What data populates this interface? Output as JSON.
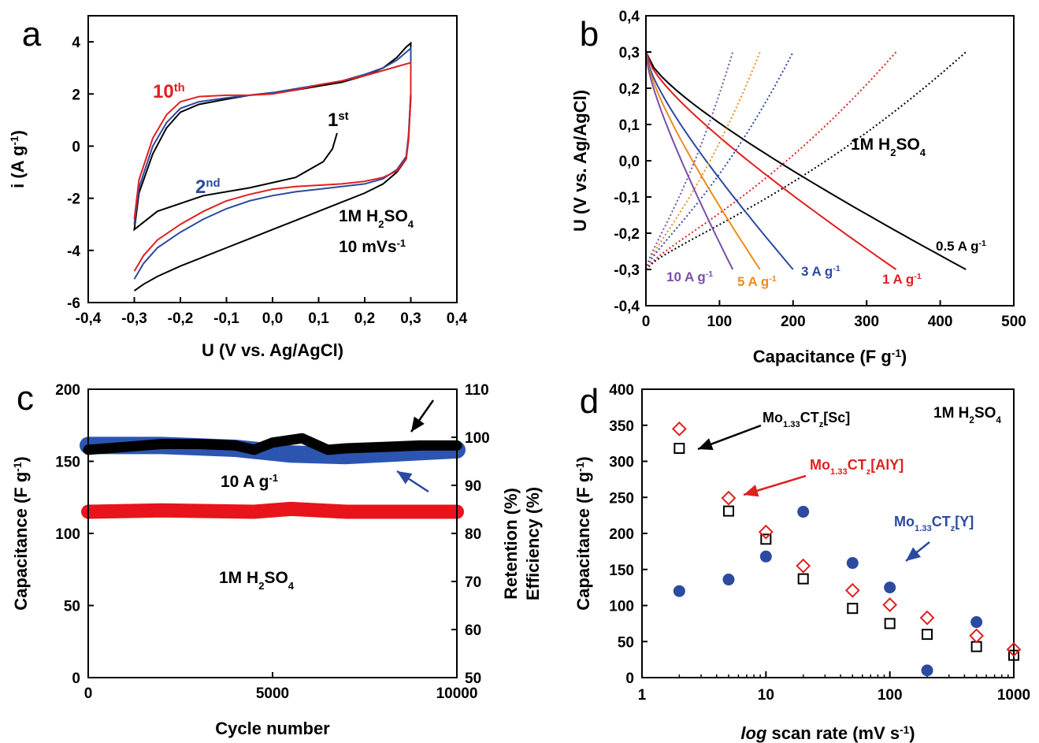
{
  "chart_data": [
    {
      "panel": "a",
      "type": "line",
      "xlabel": "U (V vs. Ag/AgCl)",
      "ylabel": "i (A g-1)",
      "xlim": [
        -0.4,
        0.4
      ],
      "ylim": [
        -6,
        5
      ],
      "xticks": [
        "-0,4",
        "-0,3",
        "-0,2",
        "-0,1",
        "0,0",
        "0,1",
        "0,2",
        "0,3",
        "0,4"
      ],
      "yticks": [
        "-6",
        "-4",
        "-2",
        "0",
        "2",
        "4"
      ],
      "annotations": [
        "10th",
        "1st",
        "2nd",
        "1M H2SO4",
        "10 mVs-1"
      ],
      "colors": {
        "1st": "#000000",
        "2nd": "#2b4aa0",
        "10th": "#e02020"
      },
      "series": [
        {
          "color": "#000000",
          "x": [
            0.14,
            0.13,
            0.11,
            0.05,
            -0.05,
            -0.15,
            -0.25,
            -0.3,
            -0.29,
            -0.26,
            -0.23,
            -0.2,
            -0.16,
            -0.1,
            -0.05,
            0.0,
            0.05,
            0.1,
            0.15,
            0.2,
            0.24,
            0.27,
            0.29,
            0.3,
            0.3,
            0.295,
            0.29,
            0.27,
            0.24,
            0.2,
            0.15,
            0.1,
            0.05,
            0.0,
            -0.05,
            -0.1,
            -0.15,
            -0.2,
            -0.25,
            -0.28,
            -0.3
          ],
          "y": [
            0.5,
            -0.1,
            -0.6,
            -1.2,
            -1.6,
            -1.9,
            -2.5,
            -3.2,
            -1.8,
            -0.3,
            0.7,
            1.3,
            1.6,
            1.8,
            1.95,
            2.05,
            2.15,
            2.3,
            2.45,
            2.7,
            3.0,
            3.4,
            3.8,
            3.95,
            2.0,
            0.3,
            -0.5,
            -1.0,
            -1.45,
            -1.8,
            -2.15,
            -2.5,
            -2.85,
            -3.2,
            -3.55,
            -3.9,
            -4.25,
            -4.6,
            -5.0,
            -5.3,
            -5.55
          ]
        },
        {
          "color": "#2b4aa0",
          "x": [
            -0.3,
            -0.29,
            -0.26,
            -0.23,
            -0.2,
            -0.16,
            -0.1,
            -0.05,
            0.0,
            0.05,
            0.1,
            0.15,
            0.2,
            0.24,
            0.27,
            0.29,
            0.3,
            0.3,
            0.295,
            0.29,
            0.27,
            0.24,
            0.2,
            0.15,
            0.1,
            0.05,
            0.0,
            -0.05,
            -0.1,
            -0.15,
            -0.2,
            -0.25,
            -0.28,
            -0.3
          ],
          "y": [
            -3.0,
            -1.6,
            0.0,
            0.9,
            1.45,
            1.7,
            1.85,
            1.95,
            2.05,
            2.2,
            2.35,
            2.5,
            2.75,
            3.0,
            3.3,
            3.6,
            3.75,
            2.0,
            0.4,
            -0.4,
            -0.9,
            -1.25,
            -1.45,
            -1.55,
            -1.65,
            -1.75,
            -1.9,
            -2.1,
            -2.4,
            -2.8,
            -3.3,
            -3.9,
            -4.5,
            -5.1
          ]
        },
        {
          "color": "#e02020",
          "x": [
            -0.3,
            -0.29,
            -0.26,
            -0.23,
            -0.2,
            -0.16,
            -0.1,
            -0.05,
            0.0,
            0.05,
            0.1,
            0.15,
            0.2,
            0.24,
            0.27,
            0.29,
            0.3,
            0.3,
            0.295,
            0.29,
            0.27,
            0.24,
            0.2,
            0.15,
            0.1,
            0.05,
            0.0,
            -0.05,
            -0.1,
            -0.15,
            -0.2,
            -0.25,
            -0.28,
            -0.3
          ],
          "y": [
            -2.8,
            -1.3,
            0.3,
            1.2,
            1.7,
            1.9,
            1.95,
            1.95,
            2.0,
            2.15,
            2.35,
            2.5,
            2.7,
            2.9,
            3.05,
            3.15,
            3.2,
            1.8,
            0.2,
            -0.5,
            -0.95,
            -1.2,
            -1.35,
            -1.45,
            -1.5,
            -1.55,
            -1.65,
            -1.85,
            -2.1,
            -2.5,
            -3.0,
            -3.6,
            -4.2,
            -4.8
          ]
        }
      ]
    },
    {
      "panel": "b",
      "type": "line",
      "xlabel": "Capacitance (F g-1)",
      "ylabel": "U (V vs. Ag/AgCl)",
      "xlim": [
        0,
        500
      ],
      "ylim": [
        -0.4,
        0.4
      ],
      "xticks": [
        "0",
        "100",
        "200",
        "300",
        "400",
        "500"
      ],
      "yticks": [
        "-0,4",
        "-0,3",
        "-0,2",
        "-0,1",
        "0,0",
        "0,1",
        "0,2",
        "0,3",
        "0,4"
      ],
      "annotations": [
        "1M H2SO4",
        "0.5 A g-1",
        "1 A g-1",
        "3 A g-1",
        "5 A g-1",
        "10 A g-1"
      ],
      "series": [
        {
          "name": "0.5 A g-1",
          "color": "#000000",
          "cmax": 435
        },
        {
          "name": "1 A g-1",
          "color": "#e02020",
          "cmax": 340
        },
        {
          "name": "3 A g-1",
          "color": "#2b4aa0",
          "cmax": 200
        },
        {
          "name": "5 A g-1",
          "color": "#f08a1e",
          "cmax": 155
        },
        {
          "name": "10 A g-1",
          "color": "#7a4fa8",
          "cmax": 118
        }
      ]
    },
    {
      "panel": "c",
      "type": "line",
      "xlabel": "Cycle number",
      "ylabel": "Capacitance (F g-1)",
      "y2label_retention": "Retention (%)",
      "y2label_efficiency": "Efficiency (%)",
      "xlim": [
        0,
        10000
      ],
      "ylim": [
        0,
        200
      ],
      "y2lim": [
        50,
        110
      ],
      "xticks": [
        "0",
        "5000",
        "10000"
      ],
      "yticks": [
        "0",
        "50",
        "100",
        "150",
        "200"
      ],
      "y2ticks": [
        "50",
        "60",
        "70",
        "80",
        "90",
        "100",
        "110"
      ],
      "annotations": [
        "10 A g-1",
        "1M H2SO4"
      ],
      "series": [
        {
          "role": "capacitance",
          "color": "#e8141c",
          "x": [
            0,
            2000,
            4500,
            5500,
            7000,
            10000
          ],
          "y": [
            115,
            116,
            115,
            117,
            115,
            115
          ]
        },
        {
          "role": "efficiency",
          "color": "#2b55b0",
          "x": [
            0,
            2000,
            4000,
            5500,
            7000,
            10000
          ],
          "y": [
            161,
            161,
            159,
            155,
            154,
            158
          ]
        },
        {
          "role": "retention",
          "color": "#000000",
          "x": [
            0,
            500,
            1000,
            2000,
            3000,
            4000,
            4500,
            5000,
            5800,
            6500,
            7000,
            8000,
            9000,
            10000
          ],
          "y": [
            158,
            159,
            160,
            162,
            162,
            161,
            158,
            163,
            166,
            158,
            159,
            160,
            161,
            161
          ]
        }
      ]
    },
    {
      "panel": "d",
      "type": "scatter",
      "xlabel": "log scan rate (mV s-1)",
      "ylabel": "Capacitance (F g-1)",
      "xscale": "log",
      "xlim": [
        1,
        1000
      ],
      "ylim": [
        0,
        400
      ],
      "xticks": [
        "1",
        "10",
        "100",
        "1000"
      ],
      "yticks": [
        "0",
        "50",
        "100",
        "150",
        "200",
        "250",
        "300",
        "350",
        "400"
      ],
      "annotations": [
        "1M H2SO4"
      ],
      "series": [
        {
          "name": "Mo1.33CTz[Sc]",
          "color": "#000000",
          "marker": "square",
          "x": [
            2,
            5,
            10,
            20,
            50,
            100,
            200,
            500,
            1000
          ],
          "y": [
            318,
            231,
            192,
            137,
            96,
            75,
            60,
            43,
            31
          ]
        },
        {
          "name": "Mo1.33CTz[AlY]",
          "color": "#e02020",
          "marker": "diamond",
          "x": [
            2,
            5,
            10,
            20,
            50,
            100,
            200,
            500,
            1000
          ],
          "y": [
            345,
            249,
            202,
            155,
            121,
            101,
            83,
            58,
            39
          ]
        },
        {
          "name": "Mo1.33CTz[Y]",
          "color": "#2b4aa0",
          "marker": "circle",
          "x": [
            2,
            5,
            10,
            20,
            50,
            100,
            200,
            500
          ],
          "y": [
            120,
            136,
            168,
            230,
            159,
            125,
            10,
            77
          ]
        }
      ]
    }
  ]
}
